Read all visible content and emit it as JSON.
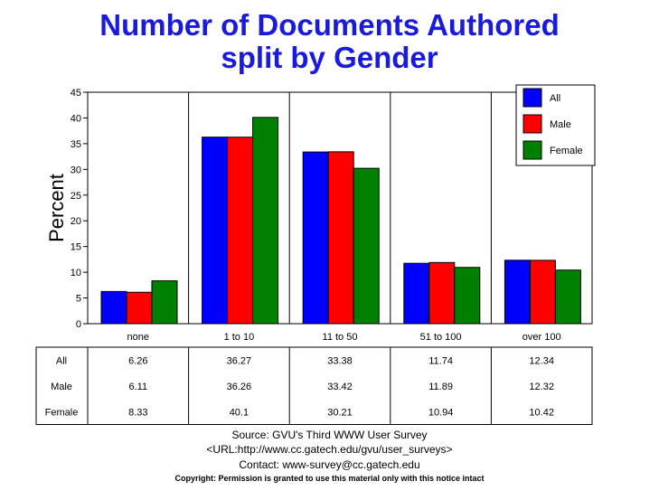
{
  "title_line1": "Number of Documents Authored",
  "title_line2": "split by Gender",
  "footer": {
    "source": "Source: GVU's Third WWW User Survey",
    "url": "<URL:http://www.cc.gatech.edu/gvu/user_surveys>",
    "contact": "Contact: www-survey@cc.gatech.edu",
    "copyright": "Copyright: Permission is granted to use this material only with this notice intact"
  },
  "chart_data": {
    "type": "bar",
    "title": "Number of Documents Authored split by Gender",
    "xlabel": "",
    "ylabel": "Percent",
    "ylim": [
      0,
      45
    ],
    "yticks": [
      0,
      5,
      10,
      15,
      20,
      25,
      30,
      35,
      40,
      45
    ],
    "categories": [
      "none",
      "1 to 10",
      "11 to 50",
      "51 to 100",
      "over 100"
    ],
    "series": [
      {
        "name": "All",
        "color": "#0000ff",
        "values": [
          6.26,
          36.27,
          33.38,
          11.74,
          12.34
        ]
      },
      {
        "name": "Male",
        "color": "#ff0000",
        "values": [
          6.11,
          36.26,
          33.42,
          11.89,
          12.32
        ]
      },
      {
        "name": "Female",
        "color": "#008000",
        "values": [
          8.33,
          40.1,
          30.21,
          10.94,
          10.42
        ]
      }
    ],
    "table_values": [
      [
        "6.26",
        "36.27",
        "33.38",
        "11.74",
        "12.34"
      ],
      [
        "6.11",
        "36.26",
        "33.42",
        "11.89",
        "12.32"
      ],
      [
        "8.33",
        "40.1",
        "30.21",
        "10.94",
        "10.42"
      ]
    ],
    "grid": "vertical",
    "legend": "top-right"
  }
}
